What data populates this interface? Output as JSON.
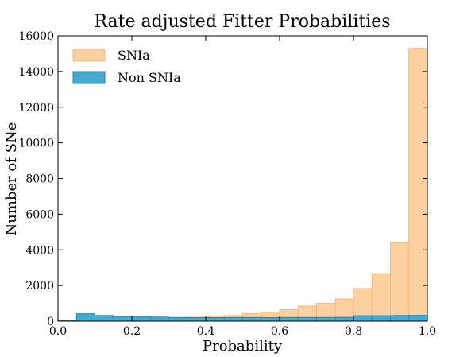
{
  "chart_data": {
    "type": "bar",
    "title": "Rate adjusted Fitter Probabilities",
    "xlabel": "Probability",
    "ylabel": "Number of SNe",
    "xlim": [
      0.0,
      1.0
    ],
    "ylim": [
      0,
      16000
    ],
    "xticks": [
      "0.0",
      "0.2",
      "0.4",
      "0.6",
      "0.8",
      "1.0"
    ],
    "yticks": [
      "0",
      "2000",
      "4000",
      "6000",
      "8000",
      "10000",
      "12000",
      "14000",
      "16000"
    ],
    "bin_edges": [
      0.0,
      0.05,
      0.1,
      0.15,
      0.2,
      0.25,
      0.3,
      0.35,
      0.4,
      0.45,
      0.5,
      0.55,
      0.6,
      0.65,
      0.7,
      0.75,
      0.8,
      0.85,
      0.9,
      0.95,
      1.0
    ],
    "legend_position": "top-left",
    "series": [
      {
        "name": "SNIa",
        "color": "#fdd0a2",
        "edge_color": "#f5b77e",
        "values": [
          10,
          120,
          150,
          170,
          170,
          170,
          190,
          220,
          270,
          320,
          420,
          500,
          640,
          850,
          1000,
          1250,
          1830,
          2670,
          4430,
          15300
        ]
      },
      {
        "name": "Non SNIa",
        "color": "#45a9d1",
        "edge_color": "#2b85ad",
        "values": [
          30,
          420,
          320,
          260,
          240,
          230,
          210,
          200,
          200,
          210,
          210,
          200,
          210,
          210,
          210,
          220,
          310,
          310,
          320,
          330
        ]
      }
    ]
  }
}
